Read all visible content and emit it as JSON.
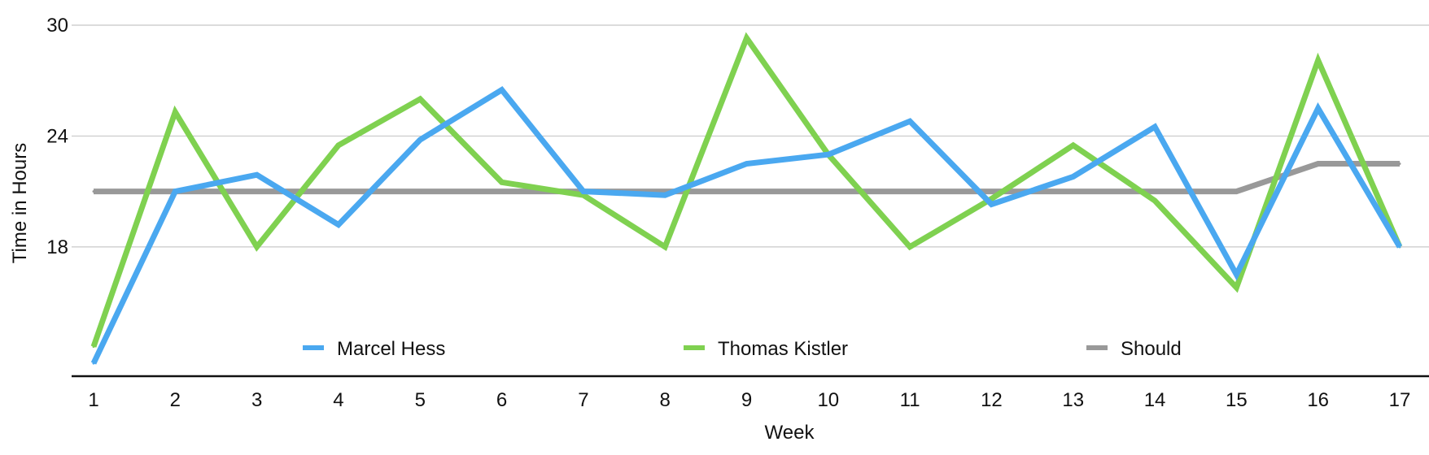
{
  "chart_data": {
    "type": "line",
    "title": "",
    "xlabel": "Week",
    "ylabel": "Time in Hours",
    "categories": [
      "1",
      "2",
      "3",
      "4",
      "5",
      "6",
      "7",
      "8",
      "9",
      "10",
      "11",
      "12",
      "13",
      "14",
      "15",
      "16",
      "17"
    ],
    "ylim": [
      11,
      30
    ],
    "y_ticks": [
      18,
      24,
      30
    ],
    "grid": true,
    "legend_position": "bottom-inside",
    "series": [
      {
        "name": "Marcel Hess",
        "color": "#4aa8f0",
        "values": [
          11.7,
          21.0,
          21.9,
          19.2,
          23.8,
          26.5,
          21.0,
          20.8,
          22.5,
          23.0,
          24.8,
          20.3,
          21.8,
          24.5,
          16.5,
          25.5,
          18.0
        ]
      },
      {
        "name": "Thomas Kistler",
        "color": "#7fd150",
        "values": [
          12.6,
          25.3,
          18.0,
          23.5,
          26.0,
          21.5,
          20.8,
          18.0,
          29.3,
          23.0,
          18.0,
          20.6,
          23.5,
          20.5,
          15.8,
          28.1,
          18.0
        ]
      },
      {
        "name": "Should",
        "color": "#999999",
        "values": [
          21.0,
          21.0,
          21.0,
          21.0,
          21.0,
          21.0,
          21.0,
          21.0,
          21.0,
          21.0,
          21.0,
          21.0,
          21.0,
          21.0,
          21.0,
          22.5,
          22.5
        ]
      }
    ]
  }
}
